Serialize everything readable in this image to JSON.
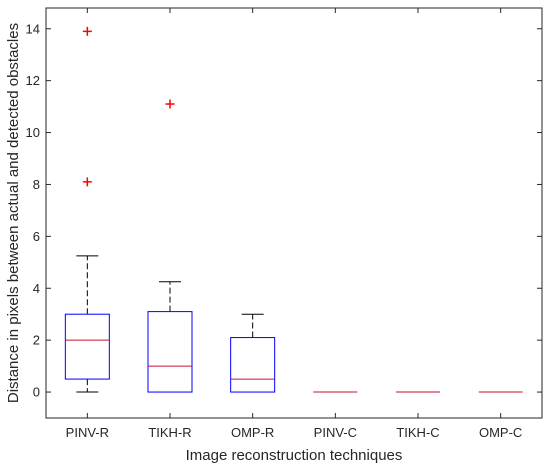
{
  "chart_data": {
    "type": "box",
    "title": "",
    "xlabel": "Image reconstruction techniques",
    "ylabel": "Distance in pixels between actual and detected obstacles",
    "ylim": [
      -1,
      14.8
    ],
    "yticks": [
      0,
      2,
      4,
      6,
      8,
      10,
      12,
      14
    ],
    "grid": false,
    "categories": [
      "PINV-R",
      "TIKH-R",
      "OMP-R",
      "PINV-C",
      "TIKH-C",
      "OMP-C"
    ],
    "boxes": [
      {
        "category": "PINV-R",
        "whisker_low": 0,
        "q1": 0.5,
        "median": 2,
        "q3": 3,
        "whisker_high": 5.25,
        "outliers": [
          8.1,
          13.9
        ]
      },
      {
        "category": "TIKH-R",
        "whisker_low": 0,
        "q1": 0,
        "median": 1,
        "q3": 3.1,
        "whisker_high": 4.25,
        "outliers": [
          11.1
        ]
      },
      {
        "category": "OMP-R",
        "whisker_low": 0,
        "q1": 0,
        "median": 0.5,
        "q3": 2.1,
        "whisker_high": 3,
        "outliers": []
      },
      {
        "category": "PINV-C",
        "whisker_low": 0,
        "q1": 0,
        "median": 0,
        "q3": 0,
        "whisker_high": 0,
        "outliers": []
      },
      {
        "category": "TIKH-C",
        "whisker_low": 0,
        "q1": 0,
        "median": 0,
        "q3": 0,
        "whisker_high": 0,
        "outliers": []
      },
      {
        "category": "OMP-C",
        "whisker_low": 0,
        "q1": 0,
        "median": 0,
        "q3": 0,
        "whisker_high": 0,
        "outliers": []
      }
    ],
    "colors": {
      "box": "#0000ff",
      "median": "#c8102e",
      "whisker": "#000000",
      "outlier": "#ff0000",
      "axis": "#262626"
    }
  }
}
